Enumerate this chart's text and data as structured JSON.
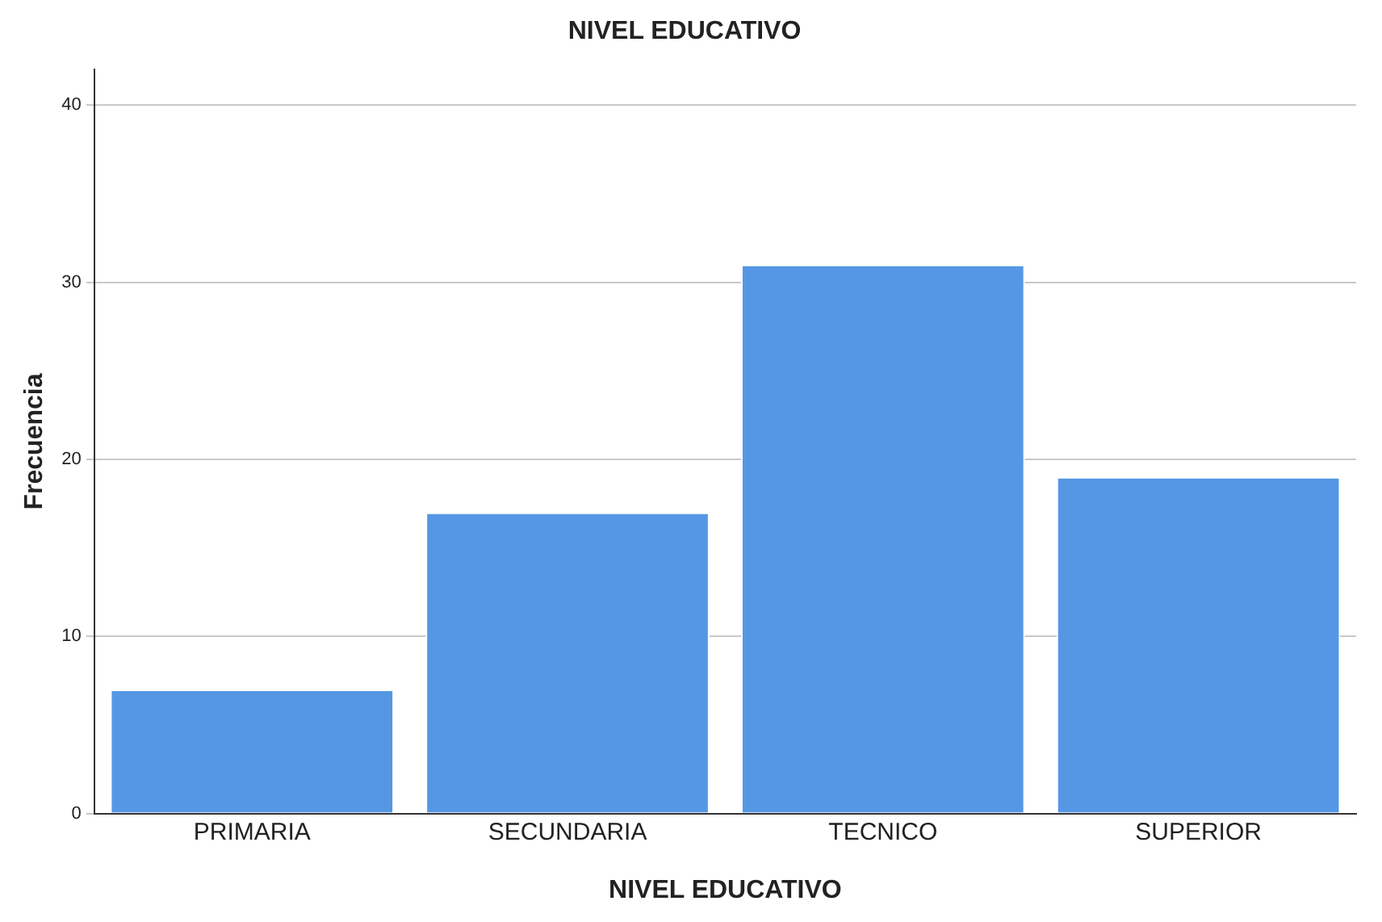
{
  "chart_data": {
    "type": "bar",
    "title": "NIVEL EDUCATIVO",
    "xlabel": "NIVEL EDUCATIVO",
    "ylabel": "Frecuencia",
    "categories": [
      "PRIMARIA",
      "SECUNDARIA",
      "TECNICO",
      "SUPERIOR"
    ],
    "values": [
      7,
      17,
      31,
      19
    ],
    "color": "#5597e5",
    "ylim": [
      0,
      42
    ],
    "yticks": [
      0,
      10,
      20,
      30,
      40
    ],
    "grid": "y"
  }
}
